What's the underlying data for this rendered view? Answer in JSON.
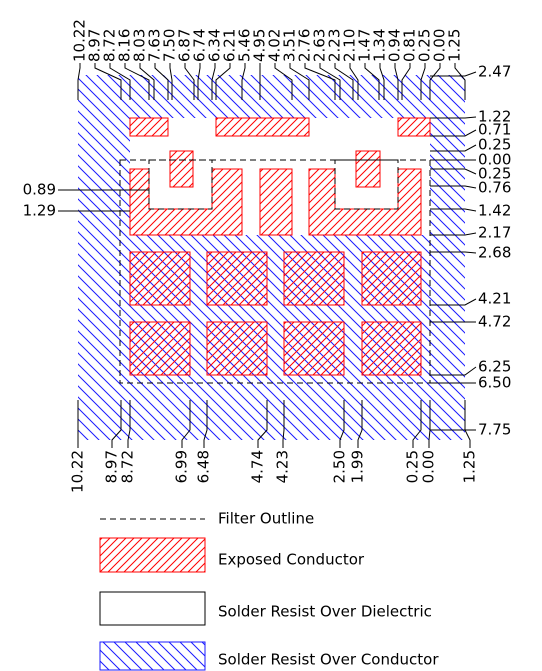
{
  "top_labels": [
    "10.22",
    "8.97",
    "8.72",
    "8.16",
    "8.03",
    "7.63",
    "7.50",
    "6.87",
    "6.74",
    "6.34",
    "6.21",
    "5.46",
    "4.95",
    "4.02",
    "3.51",
    "2.76",
    "2.63",
    "2.23",
    "2.10",
    "1.47",
    "1.34",
    "0.94",
    "0.81",
    "0.25",
    "0.00",
    "1.25"
  ],
  "bottom_labels": [
    "10.22",
    "8.97",
    "8.72",
    "6.99",
    "6.48",
    "4.74",
    "4.23",
    "2.50",
    "1.99",
    "0.25",
    "0.00",
    "1.25"
  ],
  "right_labels": [
    "2.47",
    "1.22",
    "0.71",
    "0.25",
    "0.00",
    "0.25",
    "0.76",
    "1.42",
    "2.17",
    "2.68",
    "4.21",
    "4.72",
    "6.25",
    "6.50",
    "7.75"
  ],
  "left_labels": [
    "0.89",
    "1.29"
  ],
  "legend": [
    "Filter Outline",
    "Exposed Conductor",
    "Solder Resist Over Dielectric",
    "Solder Resist Over Conductor"
  ]
}
